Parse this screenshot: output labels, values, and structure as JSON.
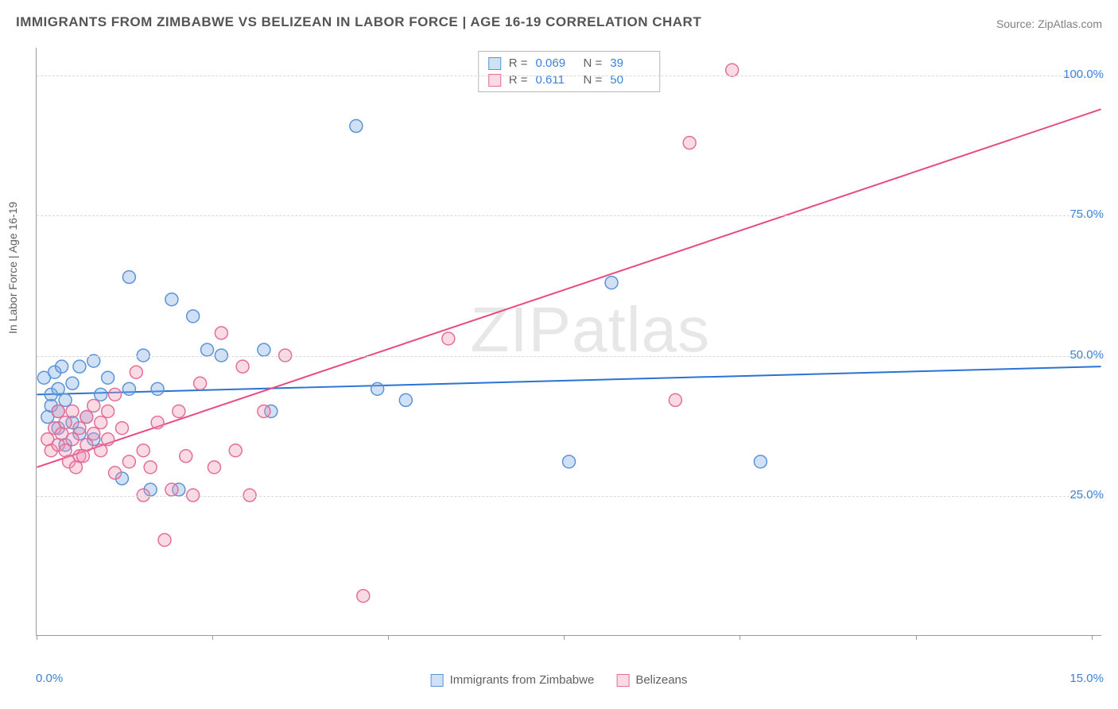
{
  "title": "IMMIGRANTS FROM ZIMBABWE VS BELIZEAN IN LABOR FORCE | AGE 16-19 CORRELATION CHART",
  "source": "Source: ZipAtlas.com",
  "ylabel": "In Labor Force | Age 16-19",
  "watermark": {
    "zip": "ZIP",
    "atlas": "atlas"
  },
  "chart": {
    "type": "scatter",
    "xlim": [
      0,
      15
    ],
    "ylim": [
      0,
      105
    ],
    "xtick_positions_pct": [
      0,
      16.5,
      33,
      49.5,
      66,
      82.5,
      99
    ],
    "xtick_labels": {
      "min": "0.0%",
      "max": "15.0%"
    },
    "y_gridlines": [
      25,
      50,
      75,
      100
    ],
    "ytick_labels": [
      "25.0%",
      "50.0%",
      "75.0%",
      "100.0%"
    ],
    "background_color": "#ffffff",
    "grid_color": "#d8d8d8",
    "axis_color": "#9a9a9a",
    "tick_label_color": "#3b82d8",
    "marker_radius": 8,
    "marker_stroke_width": 1.5,
    "line_width": 2,
    "series": [
      {
        "name": "Immigrants from Zimbabwe",
        "fill": "rgba(120,170,230,0.35)",
        "stroke": "#5b93d6",
        "line_color": "#2a72d4",
        "R": "0.069",
        "N": "39",
        "trend": {
          "x1": 0,
          "y1": 43,
          "x2": 15,
          "y2": 48
        },
        "points": [
          [
            0.1,
            46
          ],
          [
            0.2,
            41
          ],
          [
            0.2,
            43
          ],
          [
            0.25,
            47
          ],
          [
            0.3,
            37
          ],
          [
            0.3,
            40
          ],
          [
            0.3,
            44
          ],
          [
            0.35,
            48
          ],
          [
            0.4,
            42
          ],
          [
            0.5,
            45
          ],
          [
            0.5,
            38
          ],
          [
            0.6,
            48
          ],
          [
            0.7,
            39
          ],
          [
            0.8,
            49
          ],
          [
            0.9,
            43
          ],
          [
            1.0,
            46
          ],
          [
            1.2,
            28
          ],
          [
            1.3,
            44
          ],
          [
            1.3,
            64
          ],
          [
            1.5,
            50
          ],
          [
            1.6,
            26
          ],
          [
            1.7,
            44
          ],
          [
            1.9,
            60
          ],
          [
            2.0,
            26
          ],
          [
            2.2,
            57
          ],
          [
            2.4,
            51
          ],
          [
            2.6,
            50
          ],
          [
            3.2,
            51
          ],
          [
            3.3,
            40
          ],
          [
            4.5,
            91
          ],
          [
            4.8,
            44
          ],
          [
            5.2,
            42
          ],
          [
            7.5,
            31
          ],
          [
            8.1,
            63
          ],
          [
            10.2,
            31
          ],
          [
            0.4,
            34
          ],
          [
            0.6,
            36
          ],
          [
            0.8,
            35
          ],
          [
            0.15,
            39
          ]
        ]
      },
      {
        "name": "Belizeans",
        "fill": "rgba(240,150,180,0.35)",
        "stroke": "#e26f97",
        "line_color": "#e84b84",
        "R": "0.611",
        "N": "50",
        "trend": {
          "x1": 0,
          "y1": 30,
          "x2": 15,
          "y2": 94
        },
        "points": [
          [
            0.15,
            35
          ],
          [
            0.2,
            33
          ],
          [
            0.25,
            37
          ],
          [
            0.3,
            34
          ],
          [
            0.3,
            40
          ],
          [
            0.35,
            36
          ],
          [
            0.4,
            38
          ],
          [
            0.4,
            33
          ],
          [
            0.5,
            35
          ],
          [
            0.5,
            40
          ],
          [
            0.6,
            37
          ],
          [
            0.6,
            32
          ],
          [
            0.7,
            39
          ],
          [
            0.7,
            34
          ],
          [
            0.8,
            36
          ],
          [
            0.8,
            41
          ],
          [
            0.9,
            38
          ],
          [
            0.9,
            33
          ],
          [
            1.0,
            40
          ],
          [
            1.0,
            35
          ],
          [
            1.1,
            29
          ],
          [
            1.2,
            37
          ],
          [
            1.3,
            31
          ],
          [
            1.4,
            47
          ],
          [
            1.5,
            33
          ],
          [
            1.5,
            25
          ],
          [
            1.6,
            30
          ],
          [
            1.7,
            38
          ],
          [
            1.8,
            17
          ],
          [
            1.9,
            26
          ],
          [
            2.0,
            40
          ],
          [
            2.1,
            32
          ],
          [
            2.2,
            25
          ],
          [
            2.3,
            45
          ],
          [
            2.5,
            30
          ],
          [
            2.6,
            54
          ],
          [
            2.8,
            33
          ],
          [
            2.9,
            48
          ],
          [
            3.0,
            25
          ],
          [
            3.2,
            40
          ],
          [
            3.5,
            50
          ],
          [
            4.6,
            7
          ],
          [
            5.8,
            53
          ],
          [
            9.0,
            42
          ],
          [
            9.2,
            88
          ],
          [
            9.8,
            101
          ],
          [
            1.1,
            43
          ],
          [
            0.45,
            31
          ],
          [
            0.55,
            30
          ],
          [
            0.65,
            32
          ]
        ]
      }
    ]
  },
  "legend_top": {
    "stat_labels": {
      "R": "R =",
      "N": "N ="
    }
  },
  "legend_bottom": {
    "items": [
      "Immigrants from Zimbabwe",
      "Belizeans"
    ]
  }
}
